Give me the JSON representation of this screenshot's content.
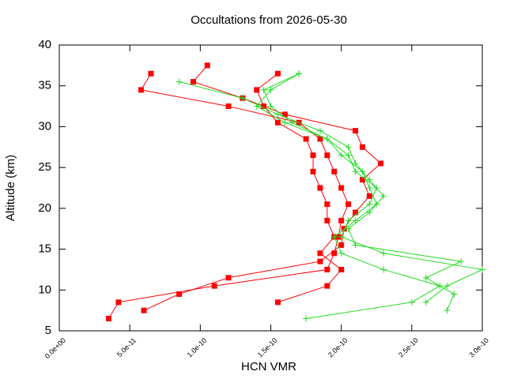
{
  "chart_data": {
    "type": "line",
    "title": "Occultations from 2026-05-30",
    "x_label": "HCN VMR",
    "y_label": "Altitude (km)",
    "xlim": [
      0,
      3e-10
    ],
    "ylim": [
      5,
      40
    ],
    "xticks": [
      {
        "value": 0,
        "label": "0.0e+00"
      },
      {
        "value": 5e-11,
        "label": "5.0e-11"
      },
      {
        "value": 1e-10,
        "label": "1.0e-10"
      },
      {
        "value": 1.5e-10,
        "label": "1.5e-10"
      },
      {
        "value": 2e-10,
        "label": "2.0e-10"
      },
      {
        "value": 2.5e-10,
        "label": "2.5e-10"
      },
      {
        "value": 3e-10,
        "label": "3.0e-10"
      }
    ],
    "yticks": [
      5,
      10,
      15,
      20,
      25,
      30,
      35,
      40
    ],
    "series": [
      {
        "color": "#ff0000",
        "marker": "square",
        "x": [
          3.5e-11,
          4.2e-11,
          1.1e-10,
          1.9e-10,
          1.95e-10,
          1.98e-10,
          2e-10,
          2.05e-10,
          2e-10,
          1.95e-10,
          1.9e-10,
          1.85e-10,
          1.7e-10,
          1.2e-10,
          5.8e-11,
          6.5e-11
        ],
        "values": [
          6.5,
          8.5,
          10.5,
          12.5,
          14.5,
          16.5,
          18.5,
          20.5,
          22.5,
          24.5,
          26.5,
          28.5,
          30.5,
          32.5,
          34.5,
          36.5
        ]
      },
      {
        "color": "#ff0000",
        "marker": "square",
        "x": [
          6e-11,
          8.5e-11,
          1.2e-10,
          1.85e-10,
          2e-10,
          2.02e-10,
          2.1e-10,
          2.2e-10,
          2.15e-10,
          2.28e-10,
          2.15e-10,
          2.1e-10,
          1.6e-10,
          1.3e-10,
          9.5e-11,
          1.05e-10
        ],
        "values": [
          7.5,
          9.5,
          11.5,
          13.5,
          15.5,
          17.5,
          19.5,
          21.5,
          23.5,
          25.5,
          27.5,
          29.5,
          31.5,
          33.5,
          35.5,
          37.5
        ]
      },
      {
        "color": "#ff0000",
        "marker": "square",
        "x": [
          1.55e-10,
          1.9e-10,
          2e-10,
          1.85e-10,
          1.95e-10,
          1.9e-10,
          1.9e-10,
          1.85e-10,
          1.8e-10,
          1.8e-10,
          1.75e-10,
          1.55e-10,
          1.45e-10,
          1.4e-10,
          1.55e-10
        ],
        "values": [
          8.5,
          10.5,
          12.5,
          14.5,
          16.5,
          18.5,
          20.5,
          22.5,
          24.5,
          26.5,
          28.5,
          30.5,
          32.5,
          34.5,
          36.5
        ]
      },
      {
        "color": "#22dd22",
        "marker": "plus",
        "x": [
          1.75e-10,
          2.5e-10,
          2.7e-10,
          2.3e-10,
          2e-10,
          1.95e-10,
          2.1e-10,
          2.25e-10,
          2.2e-10,
          2.15e-10,
          2e-10,
          1.9e-10,
          1.6e-10,
          1.4e-10,
          1.5e-10,
          1.7e-10
        ],
        "values": [
          6.5,
          8.5,
          10.5,
          12.5,
          14.5,
          16.5,
          18.5,
          20.5,
          22.5,
          24.5,
          26.5,
          28.5,
          30.5,
          32.5,
          34.5,
          36.5
        ]
      },
      {
        "color": "#22dd22",
        "marker": "plus",
        "x": [
          2.75e-10,
          2.8e-10,
          2.6e-10,
          2.85e-10,
          2.1e-10,
          2.05e-10,
          2.2e-10,
          2.3e-10,
          2.2e-10,
          2.1e-10,
          2.05e-10,
          1.85e-10,
          1.55e-10,
          1.3e-10,
          8.5e-11
        ],
        "values": [
          7.5,
          9.5,
          11.5,
          13.5,
          15.5,
          17.5,
          19.5,
          21.5,
          23.5,
          25.5,
          27.5,
          29.5,
          31.5,
          33.5,
          35.5
        ]
      },
      {
        "color": "#22dd22",
        "marker": "plus",
        "x": [
          2.6e-10,
          2.75e-10,
          3e-10,
          2.3e-10,
          2e-10,
          2.05e-10,
          2.2e-10,
          2.25e-10,
          2.1e-10,
          2.05e-10,
          1.9e-10,
          1.65e-10,
          1.5e-10,
          1.45e-10,
          1.7e-10
        ],
        "values": [
          8.5,
          10.5,
          12.5,
          14.5,
          16.5,
          18.5,
          20.5,
          22.5,
          24.5,
          26.5,
          28.5,
          30.5,
          32.5,
          34.5,
          36.5
        ]
      }
    ]
  }
}
